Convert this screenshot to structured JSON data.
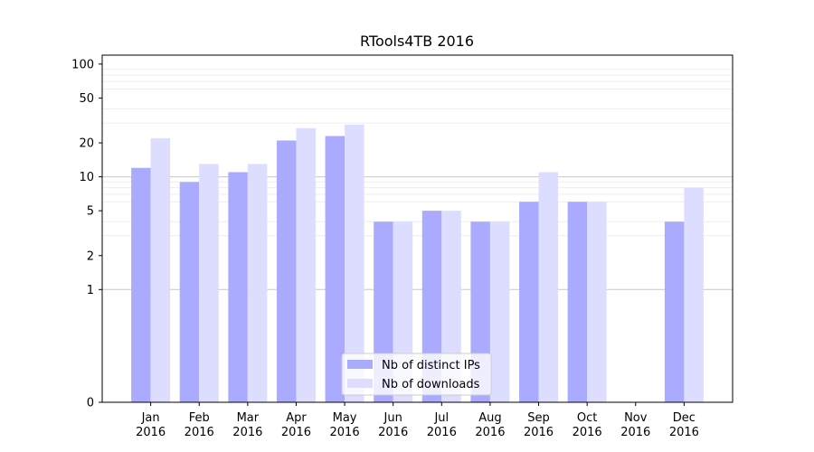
{
  "chart_data": {
    "type": "bar",
    "title": "RTools4TB 2016",
    "xlabel": "",
    "ylabel": "",
    "y_scale": "symlog",
    "ylim": [
      0,
      120
    ],
    "y_ticks": [
      0,
      1,
      2,
      5,
      10,
      20,
      50,
      100
    ],
    "categories": [
      [
        "Jan",
        "2016"
      ],
      [
        "Feb",
        "2016"
      ],
      [
        "Mar",
        "2016"
      ],
      [
        "Apr",
        "2016"
      ],
      [
        "May",
        "2016"
      ],
      [
        "Jun",
        "2016"
      ],
      [
        "Jul",
        "2016"
      ],
      [
        "Aug",
        "2016"
      ],
      [
        "Sep",
        "2016"
      ],
      [
        "Oct",
        "2016"
      ],
      [
        "Nov",
        "2016"
      ],
      [
        "Dec",
        "2016"
      ]
    ],
    "series": [
      {
        "name": "Nb of distinct IPs",
        "color": "#aaaaff",
        "values": [
          12,
          9,
          11,
          21,
          23,
          4,
          5,
          4,
          6,
          6,
          0,
          4
        ]
      },
      {
        "name": "Nb of downloads",
        "color": "#ddddff",
        "values": [
          22,
          13,
          13,
          27,
          29,
          4,
          5,
          4,
          11,
          6,
          0,
          8
        ]
      }
    ],
    "grid": true,
    "legend_position": "lower-center"
  }
}
